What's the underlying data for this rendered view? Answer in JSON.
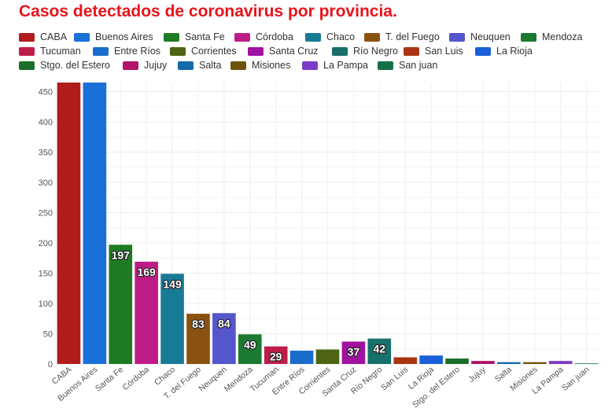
{
  "chart_data": {
    "type": "bar",
    "title": "Casos detectados de coronavirus por provincia.",
    "xlabel": "",
    "ylabel": "",
    "ylim": [
      0,
      465
    ],
    "yticks": [
      0,
      50,
      100,
      150,
      200,
      250,
      300,
      350,
      400,
      450
    ],
    "grid": true,
    "legend_position": "top",
    "categories": [
      "CABA",
      "Buenos Aires",
      "Santa Fe",
      "Córdoba",
      "Chaco",
      "T. del Fuego",
      "Neuquen",
      "Mendoza",
      "Tucuman",
      "Entre Ríos",
      "Corrientes",
      "Santa Cruz",
      "Río Negro",
      "San Luis",
      "La Rioja",
      "Stgo. del Estero",
      "Jujuy",
      "Salta",
      "Misiones",
      "La Pampa",
      "San juan"
    ],
    "values": [
      465,
      465,
      197,
      169,
      149,
      83,
      84,
      49,
      29,
      22,
      24,
      37,
      42,
      11,
      14,
      9,
      5,
      3,
      3,
      5,
      1
    ],
    "data_labels": [
      "",
      "",
      "197",
      "169",
      "149",
      "83",
      "84",
      "49",
      "29",
      "",
      "",
      "37",
      "42",
      "",
      "",
      "",
      "",
      "",
      "",
      "",
      ""
    ],
    "colors": [
      "#b01c1c",
      "#1a6fd8",
      "#1f7a24",
      "#bd1c86",
      "#187b96",
      "#8a5210",
      "#5555cc",
      "#1b7a32",
      "#c01c4a",
      "#1a6ccc",
      "#4e6414",
      "#a012a0",
      "#17706a",
      "#a83414",
      "#1a5fd8",
      "#1b6e2a",
      "#b3126a",
      "#1469a8",
      "#6e5408",
      "#7a3cc8",
      "#157048"
    ]
  }
}
